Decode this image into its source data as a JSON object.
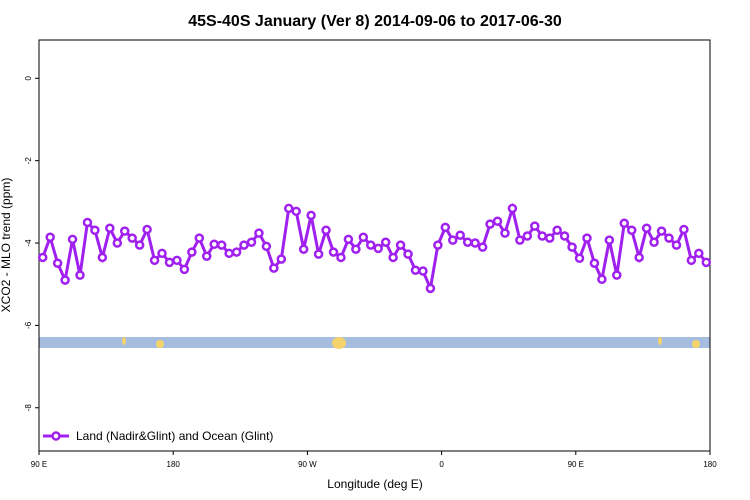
{
  "chart_data": {
    "type": "line",
    "title": "45S-40S January (Ver 8)   2014-09-06 to 2017-06-30",
    "x_label": "Longitude (deg E)",
    "y_label": "XCO2 - MLO trend (ppm)",
    "xlim": [
      90,
      540
    ],
    "ylim": [
      -9.05,
      0.93
    ],
    "xticks": [
      {
        "value": 90,
        "label": "90 E"
      },
      {
        "value": 180,
        "label": "180"
      },
      {
        "value": 270,
        "label": "90 W"
      },
      {
        "value": 360,
        "label": "0"
      },
      {
        "value": 450,
        "label": "90 E"
      },
      {
        "value": 540,
        "label": "180"
      }
    ],
    "yticks": [
      0,
      -2,
      -4,
      -6,
      -8
    ],
    "legend": "bottom-left",
    "x": [
      92.5,
      97.5,
      102.5,
      107.5,
      112.5,
      117.5,
      122.5,
      127.5,
      132.5,
      137.5,
      142.5,
      147.5,
      152.5,
      157.5,
      162.5,
      167.5,
      172.5,
      177.5,
      182.5,
      187.5,
      192.5,
      197.5,
      202.5,
      207.5,
      212.5,
      217.5,
      222.5,
      227.5,
      232.5,
      237.5,
      242.5,
      247.5,
      252.5,
      257.5,
      262.5,
      267.5,
      272.5,
      277.5,
      282.5,
      287.5,
      292.5,
      297.5,
      302.5,
      307.5,
      312.5,
      317.5,
      322.5,
      327.5,
      332.5,
      337.5,
      342.5,
      347.5,
      352.5,
      357.5,
      362.5,
      367.5,
      372.5,
      377.5,
      382.5,
      387.5,
      392.5,
      397.5,
      402.5,
      407.5,
      412.5,
      417.5,
      422.5,
      427.5,
      432.5,
      437.5,
      442.5,
      447.5,
      452.5,
      457.5,
      462.5,
      467.5,
      472.5,
      477.5,
      482.5,
      487.5,
      492.5,
      497.5,
      502.5,
      507.5,
      512.5,
      517.5,
      522.5,
      527.5,
      532.5,
      537.5
    ],
    "series": [
      {
        "name": "Land (Nadir&Glint) and Ocean (Glint)",
        "color": "#a020f0",
        "values": [
          -4.35,
          -3.86,
          -4.49,
          -4.9,
          -3.91,
          -4.78,
          -3.5,
          -3.69,
          -4.35,
          -3.64,
          -4.0,
          -3.71,
          -3.88,
          -4.05,
          -3.67,
          -4.42,
          -4.25,
          -4.47,
          -4.42,
          -4.64,
          -4.22,
          -3.88,
          -4.32,
          -4.03,
          -4.05,
          -4.25,
          -4.22,
          -4.05,
          -3.98,
          -3.76,
          -4.08,
          -4.61,
          -4.39,
          -3.16,
          -3.23,
          -4.15,
          -3.33,
          -4.27,
          -3.69,
          -4.22,
          -4.35,
          -3.91,
          -4.15,
          -3.86,
          -4.05,
          -4.13,
          -3.98,
          -4.35,
          -4.05,
          -4.27,
          -4.66,
          -4.68,
          -5.1,
          -4.05,
          -3.62,
          -3.93,
          -3.81,
          -3.98,
          -4.0,
          -4.1,
          -3.54,
          -3.47,
          -3.76,
          -3.16,
          -3.93,
          -3.83,
          -3.59,
          -3.83,
          -3.88,
          -3.69,
          -3.83,
          -4.1,
          -4.37,
          -3.88,
          -4.49,
          -4.88,
          -3.93,
          -4.78,
          -3.52,
          -3.69,
          -4.35,
          -3.64,
          -3.98,
          -3.71,
          -3.88,
          -4.05,
          -3.67,
          -4.42,
          -4.25,
          -4.47
        ]
      }
    ]
  }
}
